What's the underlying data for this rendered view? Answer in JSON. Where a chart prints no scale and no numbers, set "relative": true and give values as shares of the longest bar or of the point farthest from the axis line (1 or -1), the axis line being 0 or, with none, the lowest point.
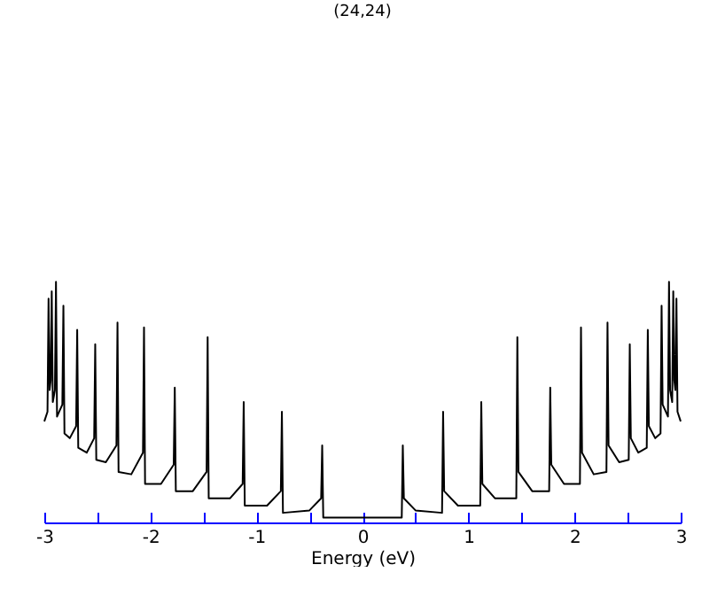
{
  "chart_data": {
    "type": "line",
    "title": "(24,24)",
    "xlabel": "Energy (eV)",
    "relative": true,
    "grid": false,
    "marker": "none",
    "line_style": "solid",
    "xlim": [
      -3,
      3
    ],
    "xticks": [
      -3,
      {
        "value": -2.5,
        "label": null
      },
      -2,
      {
        "value": -1.5,
        "label": null
      },
      -1,
      {
        "value": -0.5,
        "label": null
      },
      0,
      {
        "value": 0.5,
        "label": null
      },
      1,
      {
        "value": 1.5,
        "label": null
      },
      2,
      {
        "value": 2.5,
        "label": null
      },
      3
    ],
    "series": [
      {
        "color": "#000000",
        "x": [
          -3.0,
          -2.97,
          -2.96,
          -2.95,
          -2.94,
          -2.93,
          -2.92,
          -2.9,
          -2.89,
          -2.88,
          -2.83,
          -2.82,
          -2.81,
          -2.76,
          -2.7,
          -2.69,
          -2.68,
          -2.6,
          -2.53,
          -2.52,
          -2.51,
          -2.42,
          -2.32,
          -2.31,
          -2.3,
          -2.18,
          -2.07,
          -2.06,
          -2.05,
          -1.9,
          -1.78,
          -1.77,
          -1.76,
          -1.6,
          -1.47,
          -1.46,
          -1.45,
          -1.25,
          -1.13,
          -1.12,
          -1.11,
          -0.9,
          -0.77,
          -0.76,
          -0.75,
          -0.5,
          -0.39,
          -0.38,
          -0.37,
          0.37,
          0.38,
          0.39,
          0.5,
          0.75,
          0.76,
          0.77,
          0.9,
          1.11,
          1.12,
          1.13,
          1.25,
          1.45,
          1.46,
          1.47,
          1.6,
          1.76,
          1.77,
          1.78,
          1.9,
          2.05,
          2.06,
          2.07,
          2.18,
          2.3,
          2.31,
          2.32,
          2.42,
          2.51,
          2.52,
          2.53,
          2.6,
          2.68,
          2.69,
          2.7,
          2.76,
          2.81,
          2.82,
          2.83,
          2.88,
          2.89,
          2.9,
          2.92,
          2.93,
          2.94,
          2.95,
          2.96,
          2.97,
          3.0
        ],
        "values": [
          0.42,
          0.46,
          0.93,
          0.55,
          0.59,
          0.96,
          0.5,
          0.55,
          1,
          0.44,
          0.49,
          0.9,
          0.37,
          0.35,
          0.4,
          0.8,
          0.31,
          0.29,
          0.35,
          0.74,
          0.26,
          0.25,
          0.32,
          0.83,
          0.21,
          0.2,
          0.29,
          0.81,
          0.16,
          0.16,
          0.24,
          0.56,
          0.13,
          0.13,
          0.21,
          0.77,
          0.1,
          0.1,
          0.16,
          0.5,
          0.07,
          0.07,
          0.13,
          0.46,
          0.04,
          0.05,
          0.1,
          0.32,
          0.02,
          0.02,
          0.32,
          0.1,
          0.05,
          0.04,
          0.46,
          0.13,
          0.07,
          0.07,
          0.5,
          0.16,
          0.1,
          0.1,
          0.77,
          0.21,
          0.13,
          0.13,
          0.56,
          0.24,
          0.16,
          0.16,
          0.81,
          0.29,
          0.2,
          0.21,
          0.83,
          0.32,
          0.25,
          0.26,
          0.74,
          0.35,
          0.29,
          0.31,
          0.8,
          0.4,
          0.35,
          0.37,
          0.9,
          0.49,
          0.44,
          1,
          0.55,
          0.5,
          0.96,
          0.59,
          0.55,
          0.93,
          0.46,
          0.42
        ]
      }
    ]
  }
}
